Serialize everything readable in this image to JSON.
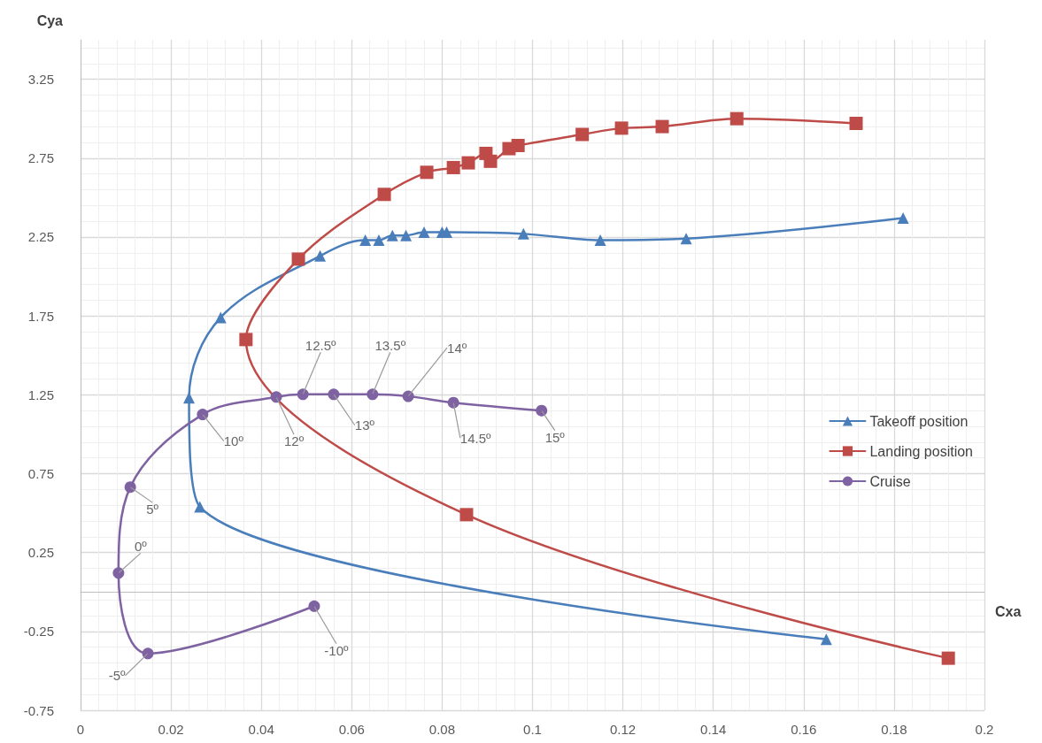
{
  "chart_data": {
    "type": "line",
    "xlabel": "Cxa",
    "ylabel": "Cya",
    "xlim": [
      0,
      0.2
    ],
    "xticks": [
      0,
      0.02,
      0.04,
      0.06,
      0.08,
      0.1,
      0.12,
      0.14,
      0.16,
      0.18,
      0.2
    ],
    "ylim": [
      -0.75,
      3.5
    ],
    "yticks": [
      -0.75,
      -0.25,
      0.25,
      0.75,
      1.25,
      1.75,
      2.25,
      2.75,
      3.25
    ],
    "grid": true,
    "legend": "right",
    "series": [
      {
        "name": "Takeoff position",
        "color": "#4a7ebb",
        "marker": "triangle",
        "x": [
          0.165,
          0.0264,
          0.024,
          0.031,
          0.053,
          0.063,
          0.066,
          0.069,
          0.072,
          0.076,
          0.08,
          0.081,
          0.098,
          0.115,
          0.134,
          0.182
        ],
        "values": [
          -0.3,
          0.54,
          1.23,
          1.74,
          2.13,
          2.23,
          2.23,
          2.26,
          2.26,
          2.28,
          2.28,
          2.28,
          2.27,
          2.23,
          2.24,
          2.37
        ]
      },
      {
        "name": "Landing position",
        "color": "#be4b48",
        "marker": "square",
        "x": [
          0.192,
          0.0854,
          0.0366,
          0.0482,
          0.0672,
          0.0766,
          0.0825,
          0.0858,
          0.0897,
          0.0907,
          0.0948,
          0.0968,
          0.111,
          0.1197,
          0.1287,
          0.1452,
          0.1716
        ],
        "values": [
          -0.42,
          0.49,
          1.6,
          2.11,
          2.52,
          2.66,
          2.69,
          2.72,
          2.78,
          2.73,
          2.81,
          2.83,
          2.9,
          2.94,
          2.95,
          3.0,
          2.97
        ]
      },
      {
        "name": "Cruise",
        "color": "#7e62a1",
        "marker": "circle",
        "x": [
          0.0517,
          0.0149,
          0.0084,
          0.011,
          0.027,
          0.0433,
          0.0492,
          0.056,
          0.0646,
          0.0725,
          0.0825,
          0.102
        ],
        "values": [
          -0.09,
          -0.39,
          0.12,
          0.665,
          1.125,
          1.236,
          1.253,
          1.253,
          1.253,
          1.24,
          1.2,
          1.15
        ]
      }
    ],
    "annotations": [
      {
        "text": "-10º",
        "x": 0.0517,
        "y": -0.09
      },
      {
        "text": "-5º",
        "x": 0.0149,
        "y": -0.39
      },
      {
        "text": "0º",
        "x": 0.0084,
        "y": 0.12
      },
      {
        "text": "5º",
        "x": 0.011,
        "y": 0.665
      },
      {
        "text": "10º",
        "x": 0.027,
        "y": 1.125
      },
      {
        "text": "12º",
        "x": 0.0433,
        "y": 1.236
      },
      {
        "text": "12.5º",
        "x": 0.0492,
        "y": 1.253
      },
      {
        "text": "13º",
        "x": 0.056,
        "y": 1.253
      },
      {
        "text": "13.5º",
        "x": 0.0646,
        "y": 1.253
      },
      {
        "text": "14º",
        "x": 0.0725,
        "y": 1.24
      },
      {
        "text": "14.5º",
        "x": 0.0825,
        "y": 1.2
      },
      {
        "text": "15º",
        "x": 0.102,
        "y": 1.15
      }
    ]
  }
}
